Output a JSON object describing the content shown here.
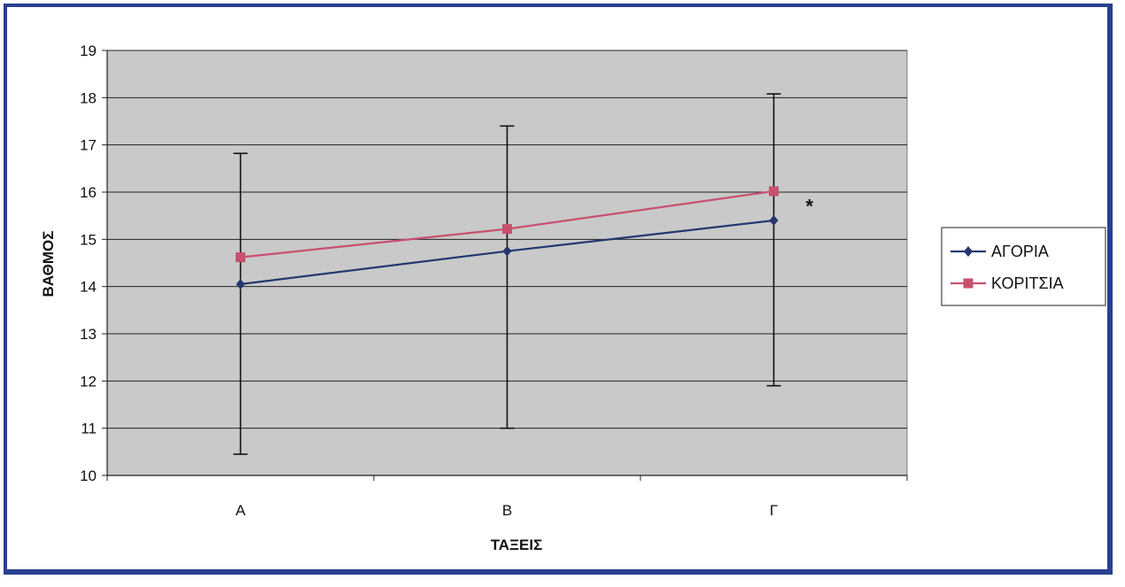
{
  "chart_data": {
    "type": "line",
    "title": "",
    "xlabel": "ΤΑΞΕΙΣ",
    "ylabel": "ΒΑΘΜΟΣ",
    "categories": [
      "Α",
      "Β",
      "Γ"
    ],
    "ylim": [
      10,
      19
    ],
    "yticks": [
      10,
      11,
      12,
      13,
      14,
      15,
      16,
      17,
      18,
      19
    ],
    "grid": true,
    "legend": "right",
    "series": [
      {
        "name": "ΑΓΟΡΙΑ",
        "color": "#24386e",
        "marker": "diamond",
        "values": [
          14.05,
          14.75,
          15.4
        ]
      },
      {
        "name": "ΚΟΡΙΤΣΙΑ",
        "color": "#c8506e",
        "marker": "square",
        "values": [
          14.62,
          15.22,
          16.02
        ]
      }
    ],
    "error_bars": [
      {
        "category": "Α",
        "low": 10.45,
        "high": 16.82
      },
      {
        "category": "Β",
        "low": 11.0,
        "high": 17.4
      },
      {
        "category": "Γ",
        "low": 11.9,
        "high": 18.08
      }
    ],
    "annotations": [
      {
        "text": "*",
        "category": "Γ",
        "y": 15.75
      }
    ],
    "plot_background": "#c9c9c9"
  }
}
